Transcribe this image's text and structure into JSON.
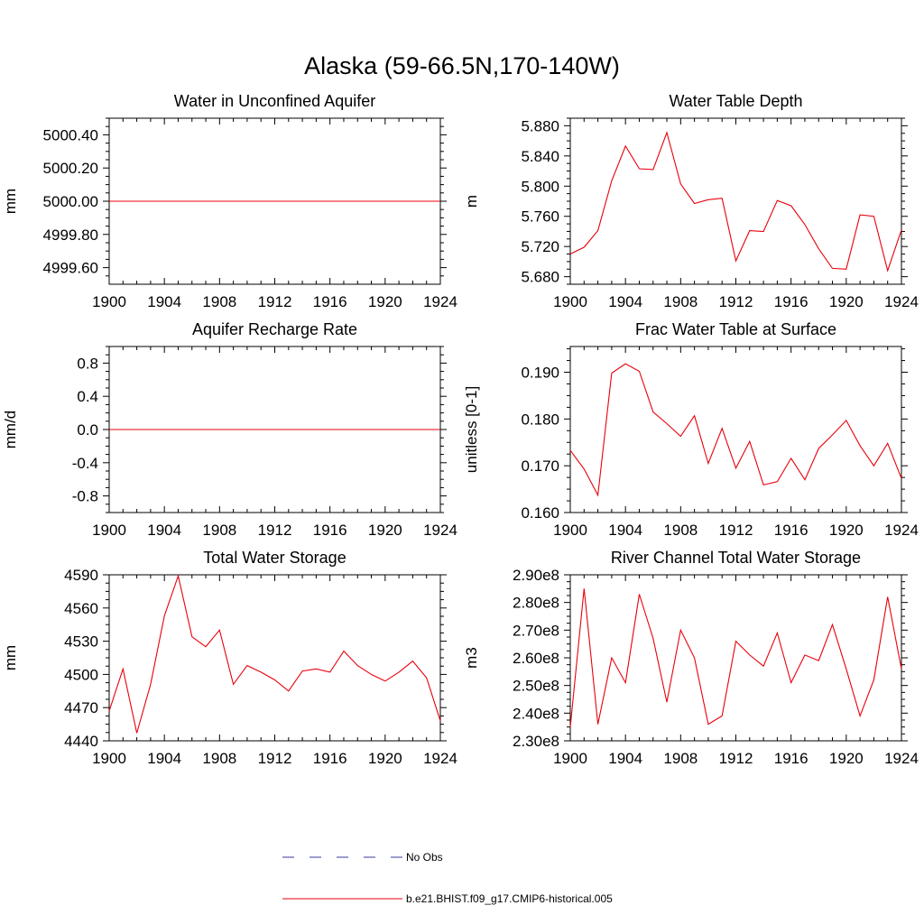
{
  "figure": {
    "title": "Alaska (59-66.5N,170-140W)",
    "legend": [
      {
        "label": "No Obs",
        "color": "#3a3aa0",
        "dash": true
      },
      {
        "label": "b.e21.BHIST.f09_g17.CMIP6-historical.005",
        "color": "#e8000b",
        "dash": false
      }
    ]
  },
  "chart_data": [
    {
      "type": "line",
      "title": "Water in Unconfined Aquifer",
      "xlabel": "",
      "ylabel": "mm",
      "xlim": [
        1900,
        1924
      ],
      "ylim": [
        4999.5,
        5000.5
      ],
      "xticks": [
        "1900",
        "1904",
        "1908",
        "1912",
        "1916",
        "1920",
        "1924"
      ],
      "yticks": [
        {
          "v": 5000.4,
          "label": "5000.40"
        },
        {
          "v": 5000.2,
          "label": "5000.20"
        },
        {
          "v": 5000.0,
          "label": "5000.00"
        },
        {
          "v": 4999.8,
          "label": "4999.80"
        },
        {
          "v": 4999.6,
          "label": "4999.60"
        }
      ],
      "x": [
        1900,
        1901,
        1902,
        1903,
        1904,
        1905,
        1906,
        1907,
        1908,
        1909,
        1910,
        1911,
        1912,
        1913,
        1914,
        1915,
        1916,
        1917,
        1918,
        1919,
        1920,
        1921,
        1922,
        1923,
        1924
      ],
      "series": [
        {
          "color": "#e8000b",
          "values": [
            5000,
            5000,
            5000,
            5000,
            5000,
            5000,
            5000,
            5000,
            5000,
            5000,
            5000,
            5000,
            5000,
            5000,
            5000,
            5000,
            5000,
            5000,
            5000,
            5000,
            5000,
            5000,
            5000,
            5000,
            5000
          ]
        }
      ]
    },
    {
      "type": "line",
      "title": "Water Table Depth",
      "xlabel": "",
      "ylabel": "m",
      "xlim": [
        1900,
        1924
      ],
      "ylim": [
        5.67,
        5.89
      ],
      "xticks": [
        "1900",
        "1904",
        "1908",
        "1912",
        "1916",
        "1920",
        "1924"
      ],
      "yticks": [
        {
          "v": 5.88,
          "label": "5.880"
        },
        {
          "v": 5.84,
          "label": "5.840"
        },
        {
          "v": 5.8,
          "label": "5.800"
        },
        {
          "v": 5.76,
          "label": "5.760"
        },
        {
          "v": 5.72,
          "label": "5.720"
        },
        {
          "v": 5.68,
          "label": "5.680"
        }
      ],
      "x": [
        1900,
        1901,
        1902,
        1903,
        1904,
        1905,
        1906,
        1907,
        1908,
        1909,
        1910,
        1911,
        1912,
        1913,
        1914,
        1915,
        1916,
        1917,
        1918,
        1919,
        1920,
        1921,
        1922,
        1923,
        1924
      ],
      "series": [
        {
          "color": "#e8000b",
          "values": [
            5.71,
            5.719,
            5.741,
            5.807,
            5.853,
            5.823,
            5.822,
            5.871,
            5.803,
            5.777,
            5.782,
            5.784,
            5.701,
            5.741,
            5.74,
            5.781,
            5.774,
            5.749,
            5.717,
            5.691,
            5.69,
            5.762,
            5.76,
            5.688,
            5.742
          ]
        }
      ]
    },
    {
      "type": "line",
      "title": "Aquifer Recharge Rate",
      "xlabel": "",
      "ylabel": "mm/d",
      "xlim": [
        1900,
        1924
      ],
      "ylim": [
        -1.0,
        1.0
      ],
      "xticks": [
        "1900",
        "1904",
        "1908",
        "1912",
        "1916",
        "1920",
        "1924"
      ],
      "yticks": [
        {
          "v": 0.8,
          "label": "0.8"
        },
        {
          "v": 0.4,
          "label": "0.4"
        },
        {
          "v": 0.0,
          "label": "0.0"
        },
        {
          "v": -0.4,
          "label": "-0.4"
        },
        {
          "v": -0.8,
          "label": "-0.8"
        }
      ],
      "x": [
        1900,
        1901,
        1902,
        1903,
        1904,
        1905,
        1906,
        1907,
        1908,
        1909,
        1910,
        1911,
        1912,
        1913,
        1914,
        1915,
        1916,
        1917,
        1918,
        1919,
        1920,
        1921,
        1922,
        1923,
        1924
      ],
      "series": [
        {
          "color": "#e8000b",
          "values": [
            0,
            0,
            0,
            0,
            0,
            0,
            0,
            0,
            0,
            0,
            0,
            0,
            0,
            0,
            0,
            0,
            0,
            0,
            0,
            0,
            0,
            0,
            0,
            0,
            0
          ]
        }
      ]
    },
    {
      "type": "line",
      "title": "Frac Water Table at Surface",
      "xlabel": "",
      "ylabel": "unitless [0-1]",
      "xlim": [
        1900,
        1924
      ],
      "ylim": [
        0.16,
        0.1955
      ],
      "xticks": [
        "1900",
        "1904",
        "1908",
        "1912",
        "1916",
        "1920",
        "1924"
      ],
      "yticks": [
        {
          "v": 0.19,
          "label": "0.190"
        },
        {
          "v": 0.18,
          "label": "0.180"
        },
        {
          "v": 0.17,
          "label": "0.170"
        },
        {
          "v": 0.16,
          "label": "0.160"
        }
      ],
      "x": [
        1900,
        1901,
        1902,
        1903,
        1904,
        1905,
        1906,
        1907,
        1908,
        1909,
        1910,
        1911,
        1912,
        1913,
        1914,
        1915,
        1916,
        1917,
        1918,
        1919,
        1920,
        1921,
        1922,
        1923,
        1924
      ],
      "series": [
        {
          "color": "#e8000b",
          "values": [
            0.1733,
            0.1693,
            0.1637,
            0.1898,
            0.1918,
            0.1902,
            0.1815,
            0.179,
            0.1763,
            0.1807,
            0.1705,
            0.178,
            0.1695,
            0.1752,
            0.1659,
            0.1666,
            0.1716,
            0.167,
            0.1737,
            0.1766,
            0.1797,
            0.1743,
            0.17,
            0.1748,
            0.1673
          ]
        }
      ]
    },
    {
      "type": "line",
      "title": "Total Water Storage",
      "xlabel": "",
      "ylabel": "mm",
      "xlim": [
        1900,
        1924
      ],
      "ylim": [
        4440,
        4590
      ],
      "xticks": [
        "1900",
        "1904",
        "1908",
        "1912",
        "1916",
        "1920",
        "1924"
      ],
      "yticks": [
        {
          "v": 4590,
          "label": "4590"
        },
        {
          "v": 4560,
          "label": "4560"
        },
        {
          "v": 4530,
          "label": "4530"
        },
        {
          "v": 4500,
          "label": "4500"
        },
        {
          "v": 4470,
          "label": "4470"
        },
        {
          "v": 4440,
          "label": "4440"
        }
      ],
      "x": [
        1900,
        1901,
        1902,
        1903,
        1904,
        1905,
        1906,
        1907,
        1908,
        1909,
        1910,
        1911,
        1912,
        1913,
        1914,
        1915,
        1916,
        1917,
        1918,
        1919,
        1920,
        1921,
        1922,
        1923,
        1924
      ],
      "series": [
        {
          "color": "#e8000b",
          "values": [
            4467,
            4505,
            4447,
            4491,
            4553,
            4589,
            4534,
            4525,
            4540,
            4491,
            4508,
            4502,
            4495,
            4485,
            4503,
            4505,
            4502,
            4521,
            4508,
            4500,
            4494,
            4502,
            4512,
            4497,
            4458
          ]
        }
      ]
    },
    {
      "type": "line",
      "title": "River Channel Total Water Storage",
      "xlabel": "",
      "ylabel": "m3",
      "xlim": [
        1900,
        1924
      ],
      "ylim": [
        230000000.0,
        290000000.0
      ],
      "xticks": [
        "1900",
        "1904",
        "1908",
        "1912",
        "1916",
        "1920",
        "1924"
      ],
      "yticks": [
        {
          "v": 290000000.0,
          "label": "2.90e8"
        },
        {
          "v": 280000000.0,
          "label": "2.80e8"
        },
        {
          "v": 270000000.0,
          "label": "2.70e8"
        },
        {
          "v": 260000000.0,
          "label": "2.60e8"
        },
        {
          "v": 250000000.0,
          "label": "2.50e8"
        },
        {
          "v": 240000000.0,
          "label": "2.40e8"
        },
        {
          "v": 230000000.0,
          "label": "2.30e8"
        }
      ],
      "x": [
        1900,
        1901,
        1902,
        1903,
        1904,
        1905,
        1906,
        1907,
        1908,
        1909,
        1910,
        1911,
        1912,
        1913,
        1914,
        1915,
        1916,
        1917,
        1918,
        1919,
        1920,
        1921,
        1922,
        1923,
        1924
      ],
      "series": [
        {
          "color": "#e8000b",
          "values": [
            235000000.0,
            285000000.0,
            236000000.0,
            260000000.0,
            251000000.0,
            283000000.0,
            267000000.0,
            244000000.0,
            270000000.0,
            260000000.0,
            236000000.0,
            239000000.0,
            266000000.0,
            261000000.0,
            257000000.0,
            269000000.0,
            251000000.0,
            261000000.0,
            259000000.0,
            272000000.0,
            256000000.0,
            239000000.0,
            252000000.0,
            282000000.0,
            256000000.0
          ]
        }
      ]
    }
  ]
}
